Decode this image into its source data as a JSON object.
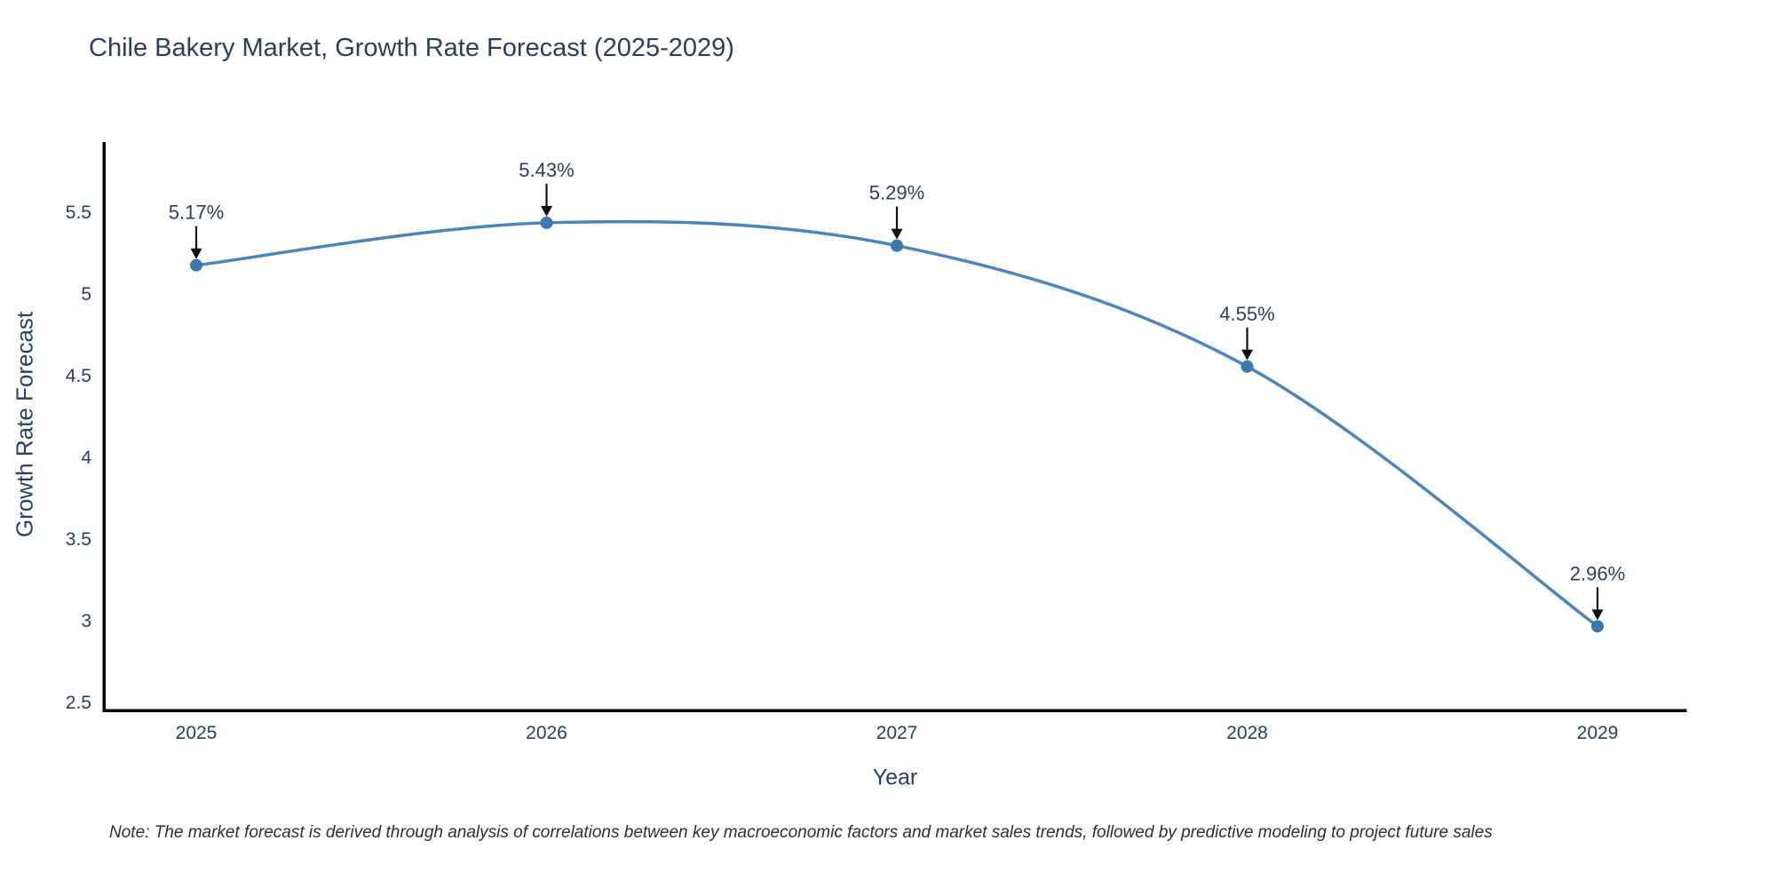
{
  "chart_data": {
    "type": "line",
    "title": "Chile Bakery Market, Growth Rate Forecast (2025-2029)",
    "xlabel": "Year",
    "ylabel": "Growth Rate Forecast",
    "categories": [
      "2025",
      "2026",
      "2027",
      "2028",
      "2029"
    ],
    "values": [
      5.17,
      5.43,
      5.29,
      4.55,
      2.96
    ],
    "point_labels": [
      "5.17%",
      "5.43%",
      "5.29%",
      "4.55%",
      "2.96%"
    ],
    "yticks": [
      "2.5",
      "3",
      "3.5",
      "4",
      "4.5",
      "5",
      "5.5"
    ],
    "ytick_values": [
      2.5,
      3,
      3.5,
      4,
      4.5,
      5,
      5.5
    ],
    "ylim": [
      2.5,
      6.0
    ],
    "line_shape": "spline",
    "grid": false,
    "legend": "none",
    "colors": {
      "line": "#4c85b8",
      "marker": "#3c78ad",
      "arrow": "#111111",
      "text": "#2a3f5f",
      "axis": "#000000"
    },
    "note": "Note: The market forecast is derived through analysis of correlations between key macroeconomic factors and market sales trends, followed by predictive modeling to project future sales"
  }
}
